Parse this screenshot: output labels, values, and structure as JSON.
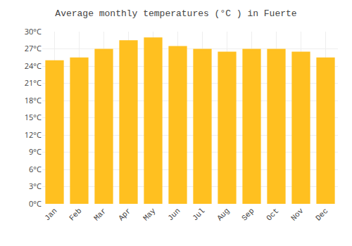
{
  "chart_data": {
    "type": "bar",
    "title": "Average monthly temperatures (°C ) in Fuerte",
    "categories": [
      "Jan",
      "Feb",
      "Mar",
      "Apr",
      "May",
      "Jun",
      "Jul",
      "Aug",
      "Sep",
      "Oct",
      "Nov",
      "Dec"
    ],
    "values": [
      25.0,
      25.5,
      27.0,
      28.5,
      29.0,
      27.5,
      27.0,
      26.5,
      27.0,
      27.0,
      26.5,
      25.5
    ],
    "color": "#FFC020",
    "ylim": [
      0,
      30
    ],
    "yticks": [
      {
        "value": 0,
        "label": "0°C"
      },
      {
        "value": 3,
        "label": "3°C"
      },
      {
        "value": 6,
        "label": "6°C"
      },
      {
        "value": 9,
        "label": "9°C"
      },
      {
        "value": 12,
        "label": "12°C"
      },
      {
        "value": 15,
        "label": "15°C"
      },
      {
        "value": 18,
        "label": "18°C"
      },
      {
        "value": 21,
        "label": "21°C"
      },
      {
        "value": 24,
        "label": "24°C"
      },
      {
        "value": 27,
        "label": "27°C"
      },
      {
        "value": 30,
        "label": "30°C"
      }
    ],
    "grid": true
  }
}
